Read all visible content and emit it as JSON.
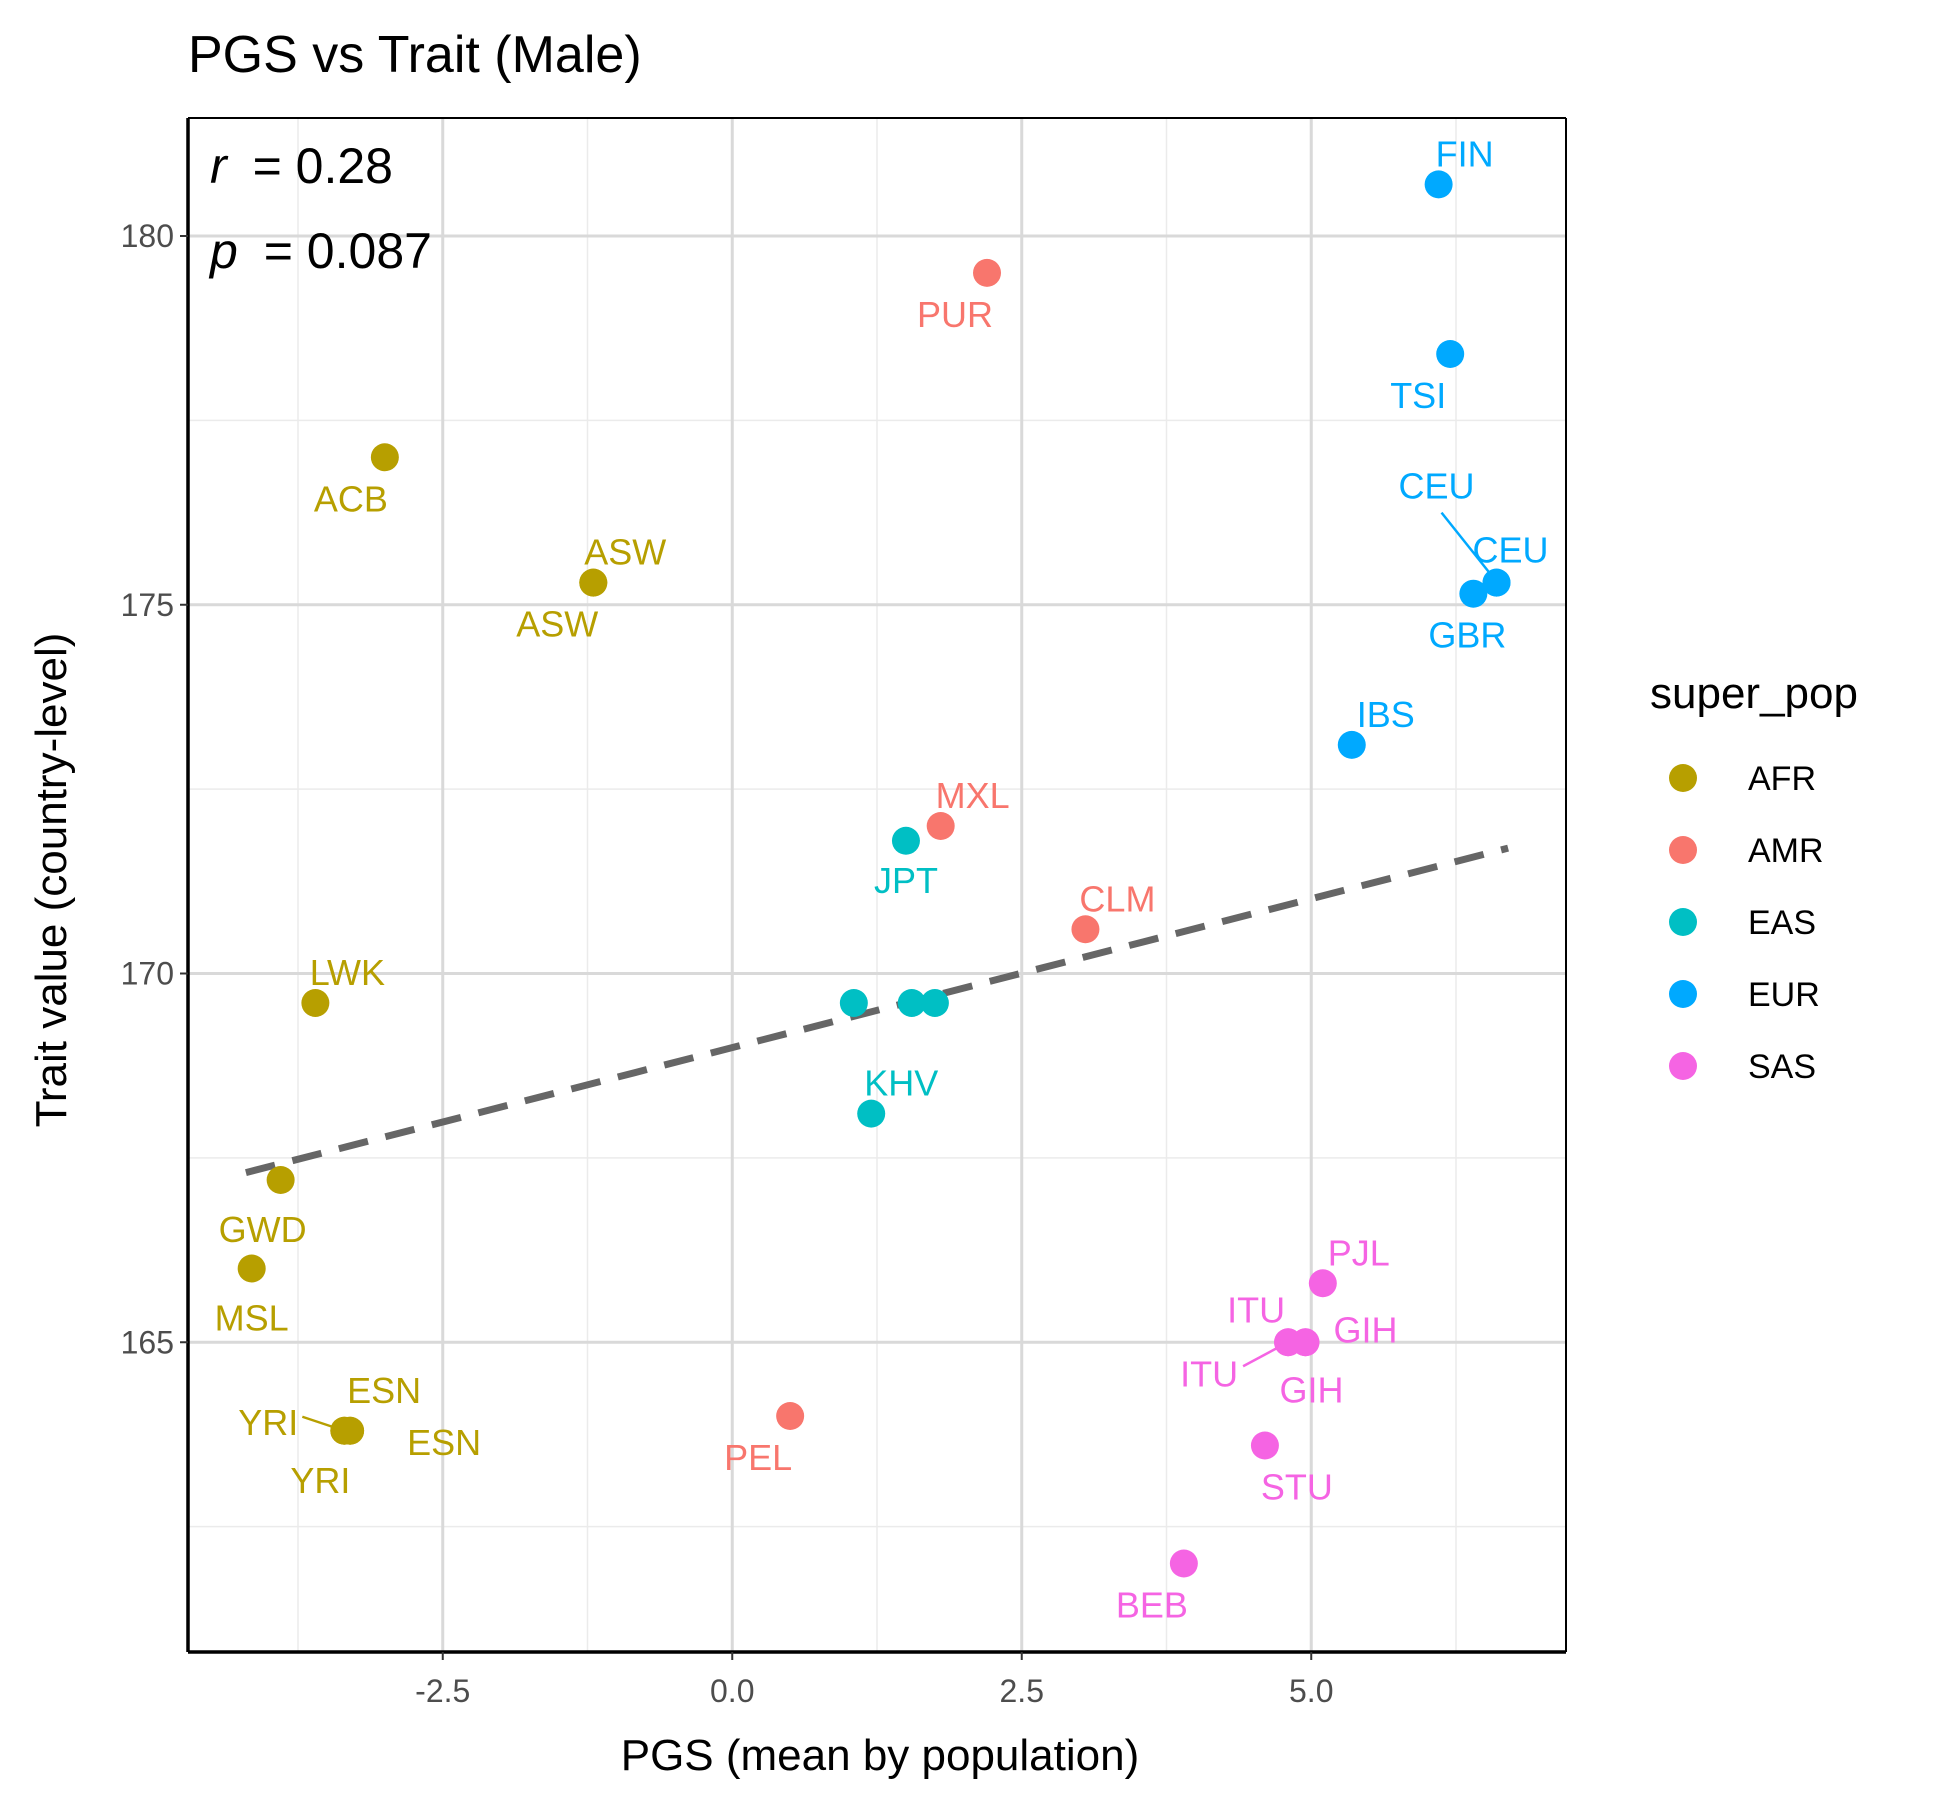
{
  "chart_data": {
    "type": "scatter",
    "title": "PGS vs Trait (Male)",
    "xlabel": "PGS (mean by population)",
    "ylabel": "Trait value (country-level)",
    "xlim": [
      -4.7,
      7.2
    ],
    "ylim": [
      160.8,
      181.6
    ],
    "x_ticks": [
      -2.5,
      0.0,
      2.5,
      5.0
    ],
    "x_tick_labels": [
      "-2.5",
      "0.0",
      "2.5",
      "5.0"
    ],
    "y_ticks": [
      165,
      170,
      175,
      180
    ],
    "y_tick_labels": [
      "165",
      "170",
      "175",
      "180"
    ],
    "grid": true,
    "legend": {
      "title": "super_pop",
      "placement": "right",
      "entries": [
        {
          "name": "AFR",
          "color": "#B79F00"
        },
        {
          "name": "AMR",
          "color": "#F8766D"
        },
        {
          "name": "EAS",
          "color": "#00BFC4"
        },
        {
          "name": "EUR",
          "color": "#00A9FF"
        },
        {
          "name": "SAS",
          "color": "#F564E3"
        }
      ]
    },
    "stats": {
      "r_symbol": "r",
      "r_text": "= 0.28",
      "p_symbol": "p",
      "p_text": "= 0.087"
    },
    "trend_line": {
      "style": "dashed",
      "color": "#666666",
      "x": [
        -4.2,
        6.7
      ],
      "y": [
        167.3,
        171.7
      ]
    },
    "points": [
      {
        "label": "FIN",
        "super_pop": "EUR",
        "x": 6.1,
        "y": 180.7
      },
      {
        "label": "PUR",
        "super_pop": "AMR",
        "x": 2.2,
        "y": 179.5
      },
      {
        "label": "TSI",
        "super_pop": "EUR",
        "x": 6.2,
        "y": 178.4
      },
      {
        "label": "ACB",
        "super_pop": "AFR",
        "x": -3.0,
        "y": 177.0
      },
      {
        "label": "ASW",
        "super_pop": "AFR",
        "x": -1.2,
        "y": 175.3
      },
      {
        "label": "ASW",
        "super_pop": "AFR",
        "x": -1.2,
        "y": 175.3
      },
      {
        "label": "CEU",
        "super_pop": "EUR",
        "x": 6.6,
        "y": 175.3
      },
      {
        "label": "CEU",
        "super_pop": "EUR",
        "x": 6.6,
        "y": 175.3
      },
      {
        "label": "GBR",
        "super_pop": "EUR",
        "x": 6.4,
        "y": 175.15
      },
      {
        "label": "IBS",
        "super_pop": "EUR",
        "x": 5.35,
        "y": 173.1
      },
      {
        "label": "MXL",
        "super_pop": "AMR",
        "x": 1.8,
        "y": 172.0
      },
      {
        "label": "JPT",
        "super_pop": "EAS",
        "x": 1.5,
        "y": 171.8
      },
      {
        "label": "CLM",
        "super_pop": "AMR",
        "x": 3.05,
        "y": 170.6
      },
      {
        "label": "",
        "super_pop": "EAS",
        "x": 1.05,
        "y": 169.6
      },
      {
        "label": "",
        "super_pop": "EAS",
        "x": 1.55,
        "y": 169.6
      },
      {
        "label": "",
        "super_pop": "EAS",
        "x": 1.75,
        "y": 169.6
      },
      {
        "label": "LWK",
        "super_pop": "AFR",
        "x": -3.6,
        "y": 169.6
      },
      {
        "label": "KHV",
        "super_pop": "EAS",
        "x": 1.2,
        "y": 168.1
      },
      {
        "label": "GWD",
        "super_pop": "AFR",
        "x": -3.9,
        "y": 167.2
      },
      {
        "label": "MSL",
        "super_pop": "AFR",
        "x": -4.15,
        "y": 166.0
      },
      {
        "label": "PJL",
        "super_pop": "SAS",
        "x": 5.1,
        "y": 165.8
      },
      {
        "label": "ITU",
        "super_pop": "SAS",
        "x": 4.8,
        "y": 165.0
      },
      {
        "label": "ITU",
        "super_pop": "SAS",
        "x": 4.8,
        "y": 165.0
      },
      {
        "label": "GIH",
        "super_pop": "SAS",
        "x": 4.95,
        "y": 165.0
      },
      {
        "label": "GIH",
        "super_pop": "SAS",
        "x": 4.95,
        "y": 165.0
      },
      {
        "label": "ESN",
        "super_pop": "AFR",
        "x": -3.3,
        "y": 163.8
      },
      {
        "label": "ESN",
        "super_pop": "AFR",
        "x": -3.3,
        "y": 163.8
      },
      {
        "label": "YRI",
        "super_pop": "AFR",
        "x": -3.35,
        "y": 163.8
      },
      {
        "label": "YRI",
        "super_pop": "AFR",
        "x": -3.35,
        "y": 163.8
      },
      {
        "label": "PEL",
        "super_pop": "AMR",
        "x": 0.5,
        "y": 164.0
      },
      {
        "label": "STU",
        "super_pop": "SAS",
        "x": 4.6,
        "y": 163.6
      },
      {
        "label": "BEB",
        "super_pop": "SAS",
        "x": 3.9,
        "y": 162.0
      }
    ]
  }
}
